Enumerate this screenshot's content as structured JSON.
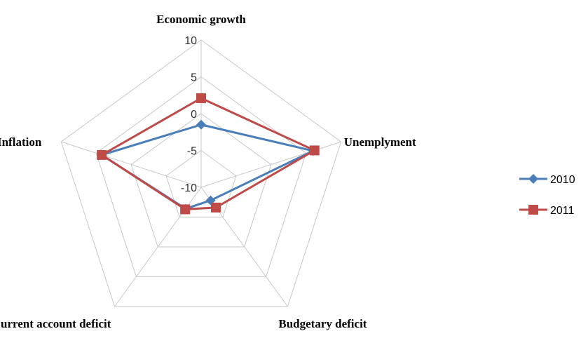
{
  "chart_data": {
    "type": "radar",
    "categories": [
      "Economic growth",
      "Unemplyment",
      "Budgetary deficit",
      "Current account deficit",
      "Inflation"
    ],
    "series": [
      {
        "name": "2010",
        "color": "#4a7ebb",
        "marker": "diamond",
        "values": [
          -1.5,
          6.0,
          -7.8,
          -6.4,
          4.2
        ]
      },
      {
        "name": "2011",
        "color": "#be4b48",
        "marker": "square",
        "values": [
          2.1,
          6.2,
          -6.6,
          -6.3,
          4.2
        ]
      }
    ],
    "ylim": [
      -10,
      10
    ],
    "yticks": [
      -10,
      -5,
      0,
      5,
      10
    ],
    "grid": true,
    "legend": "right"
  }
}
